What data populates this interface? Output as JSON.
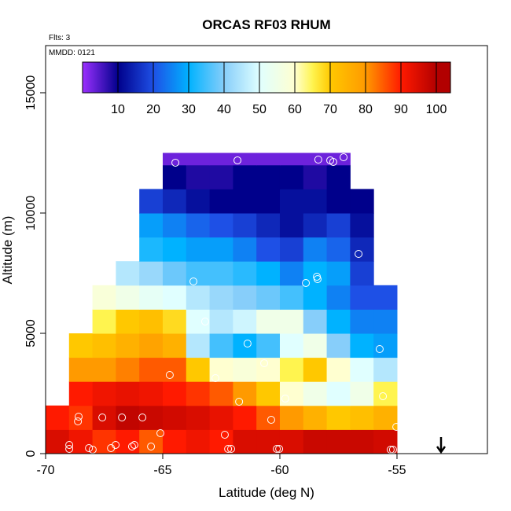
{
  "chart_data": {
    "type": "heatmap",
    "title": "ORCAS RF03 RHUM",
    "note_flights": "Flts: 3",
    "note_date": "MMDD: 0121",
    "x_label": "Latitude (deg N)",
    "y_label": "Altitude (m)",
    "xlim": [
      -70,
      -51.14
    ],
    "ylim": [
      0,
      16960
    ],
    "xticks": [
      -70,
      -65,
      -60,
      -55
    ],
    "yticks": [
      0,
      5000,
      10000,
      15000
    ],
    "lat_edges": [
      -70,
      -69,
      -68,
      -67,
      -66,
      -65,
      -64,
      -63,
      -62,
      -61,
      -60,
      -59,
      -58,
      -57,
      -56,
      -55
    ],
    "alt_edges": [
      0,
      1000,
      2000,
      3000,
      4000,
      5000,
      6000,
      7000,
      8000,
      9000,
      10000,
      11000,
      12000,
      12500
    ],
    "values": [
      [
        95,
        92,
        88,
        90,
        85,
        90,
        92,
        90,
        95,
        95,
        95,
        97,
        97,
        97,
        96
      ],
      [
        90,
        88,
        95,
        98,
        97,
        96,
        95,
        93,
        90,
        85,
        80,
        75,
        70,
        72,
        75
      ],
      [
        null,
        90,
        92,
        93,
        92,
        90,
        88,
        85,
        80,
        70,
        60,
        55,
        50,
        55,
        65
      ],
      [
        null,
        80,
        80,
        82,
        85,
        85,
        70,
        60,
        58,
        60,
        65,
        70,
        60,
        50,
        45
      ],
      [
        null,
        70,
        72,
        75,
        78,
        75,
        45,
        35,
        30,
        35,
        50,
        55,
        40,
        30,
        28
      ],
      [
        null,
        null,
        65,
        70,
        72,
        68,
        50,
        45,
        48,
        55,
        55,
        40,
        30,
        25,
        25
      ],
      [
        null,
        null,
        58,
        55,
        52,
        50,
        45,
        42,
        40,
        38,
        35,
        30,
        25,
        20,
        20
      ],
      [
        null,
        null,
        null,
        45,
        42,
        38,
        35,
        35,
        33,
        30,
        25,
        30,
        28,
        18,
        null
      ],
      [
        null,
        null,
        null,
        null,
        32,
        30,
        28,
        28,
        25,
        20,
        18,
        25,
        22,
        15,
        null
      ],
      [
        null,
        null,
        null,
        null,
        28,
        25,
        22,
        20,
        18,
        15,
        12,
        15,
        18,
        12,
        null
      ],
      [
        null,
        null,
        null,
        null,
        18,
        15,
        12,
        10,
        10,
        10,
        12,
        12,
        10,
        10,
        null
      ],
      [
        null,
        null,
        null,
        null,
        null,
        10,
        8,
        8,
        10,
        10,
        10,
        8,
        10,
        null,
        null
      ],
      [
        null,
        null,
        null,
        null,
        null,
        3,
        3,
        3,
        3,
        3,
        3,
        3,
        3,
        null,
        null
      ]
    ],
    "colorbar_lim": [
      0,
      104
    ],
    "colorbar_ticks": [
      10,
      20,
      30,
      40,
      50,
      60,
      70,
      80,
      90,
      100
    ],
    "color_stops": [
      {
        "value": 0,
        "color": "#9b30ff"
      },
      {
        "value": 10,
        "color": "#00008b"
      },
      {
        "value": 20,
        "color": "#1e50e6"
      },
      {
        "value": 30,
        "color": "#00b2ff"
      },
      {
        "value": 40,
        "color": "#87cefa"
      },
      {
        "value": 50,
        "color": "#e0ffff"
      },
      {
        "value": 60,
        "color": "#ffffd0"
      },
      {
        "value": 65,
        "color": "#fff44f"
      },
      {
        "value": 70,
        "color": "#ffc800"
      },
      {
        "value": 80,
        "color": "#ff9a00"
      },
      {
        "value": 90,
        "color": "#ff1a00"
      },
      {
        "value": 100,
        "color": "#b20000"
      }
    ],
    "samples": {
      "x": [
        -64.46,
        -61.81,
        -58.36,
        -57.85,
        -57.72,
        -57.28,
        -56.64,
        -63.69,
        -58.89,
        -58.42,
        -58.39,
        -63.19,
        -61.38,
        -60.67,
        -55.74,
        -64.7,
        -62.75,
        -61.74,
        -59.77,
        -60.37,
        -55.6,
        -55.03,
        -68.59,
        -68.62,
        -67.58,
        -66.74,
        -65.87,
        -65.1,
        -62.35,
        -68.99,
        -68.99,
        -68.15,
        -67.99,
        -67.21,
        -67.01,
        -66.31,
        -66.21,
        -65.5,
        -62.21,
        -62.08,
        -60.13,
        -60.03,
        -55.27,
        -55.17
      ],
      "y": [
        12092,
        12190,
        12222,
        12190,
        12125,
        12320,
        8300,
        7157,
        7092,
        7353,
        7255,
        5490,
        4575,
        3758,
        4346,
        3268,
        3137,
        2157,
        2288,
        1405,
        2386,
        1111,
        1536,
        1340,
        1503,
        1503,
        1503,
        850,
        784,
        360,
        196,
        229,
        163,
        229,
        360,
        294,
        360,
        294,
        196,
        196,
        196,
        196,
        163,
        163
      ]
    },
    "arrow_x": -53.12
  }
}
